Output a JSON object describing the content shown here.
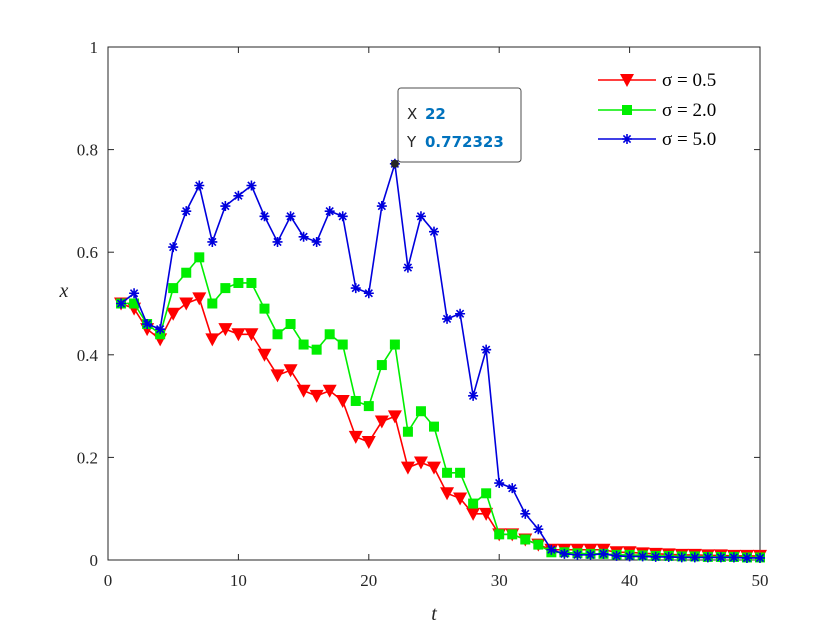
{
  "chart_data": {
    "type": "line",
    "xlabel": "t",
    "ylabel": "x",
    "xlim": [
      0,
      50
    ],
    "ylim": [
      0,
      1
    ],
    "xticks": [
      0,
      10,
      20,
      30,
      40,
      50
    ],
    "yticks": [
      0,
      0.2,
      0.4,
      0.6,
      0.8,
      1
    ],
    "xtick_labels": [
      "0",
      "10",
      "20",
      "30",
      "40",
      "50"
    ],
    "ytick_labels": [
      "0",
      "0.2",
      "0.4",
      "0.6",
      "0.8",
      "1"
    ],
    "legend_position": "top-right",
    "grid": false,
    "x": [
      1,
      2,
      3,
      4,
      5,
      6,
      7,
      8,
      9,
      10,
      11,
      12,
      13,
      14,
      15,
      16,
      17,
      18,
      19,
      20,
      21,
      22,
      23,
      24,
      25,
      26,
      27,
      28,
      29,
      30,
      31,
      32,
      33,
      34,
      35,
      36,
      37,
      38,
      39,
      40,
      41,
      42,
      43,
      44,
      45,
      46,
      47,
      48,
      49,
      50
    ],
    "series": [
      {
        "name": "σ = 0.5",
        "color": "#ff0000",
        "marker": "triangle-down",
        "values": [
          0.5,
          0.49,
          0.45,
          0.43,
          0.48,
          0.5,
          0.51,
          0.43,
          0.45,
          0.44,
          0.44,
          0.4,
          0.36,
          0.37,
          0.33,
          0.32,
          0.33,
          0.31,
          0.24,
          0.23,
          0.27,
          0.28,
          0.18,
          0.19,
          0.18,
          0.13,
          0.12,
          0.09,
          0.09,
          0.05,
          0.05,
          0.04,
          0.03,
          0.02,
          0.02,
          0.02,
          0.02,
          0.02,
          0.015,
          0.015,
          0.013,
          0.012,
          0.011,
          0.01,
          0.01,
          0.009,
          0.009,
          0.008,
          0.008,
          0.008
        ]
      },
      {
        "name": "σ = 2.0",
        "color": "#00ee00",
        "marker": "square",
        "values": [
          0.5,
          0.5,
          0.46,
          0.44,
          0.53,
          0.56,
          0.59,
          0.5,
          0.53,
          0.54,
          0.54,
          0.49,
          0.44,
          0.46,
          0.42,
          0.41,
          0.44,
          0.42,
          0.31,
          0.3,
          0.38,
          0.42,
          0.25,
          0.29,
          0.26,
          0.17,
          0.17,
          0.11,
          0.13,
          0.05,
          0.05,
          0.04,
          0.03,
          0.015,
          0.015,
          0.013,
          0.012,
          0.012,
          0.01,
          0.01,
          0.009,
          0.008,
          0.008,
          0.007,
          0.007,
          0.006,
          0.006,
          0.006,
          0.005,
          0.005
        ]
      },
      {
        "name": "σ = 5.0",
        "color": "#0000dd",
        "marker": "asterisk",
        "values": [
          0.5,
          0.52,
          0.46,
          0.45,
          0.61,
          0.68,
          0.73,
          0.62,
          0.69,
          0.71,
          0.73,
          0.67,
          0.62,
          0.67,
          0.63,
          0.62,
          0.68,
          0.67,
          0.53,
          0.52,
          0.69,
          0.772323,
          0.57,
          0.67,
          0.64,
          0.47,
          0.48,
          0.32,
          0.41,
          0.15,
          0.14,
          0.09,
          0.06,
          0.02,
          0.012,
          0.01,
          0.01,
          0.012,
          0.008,
          0.007,
          0.007,
          0.006,
          0.006,
          0.005,
          0.005,
          0.005,
          0.005,
          0.005,
          0.004,
          0.004
        ]
      }
    ],
    "datatip": {
      "x_label": "X",
      "y_label": "Y",
      "x_value": "22",
      "y_value": "0.772323",
      "series_index": 2,
      "point_index": 21
    }
  }
}
